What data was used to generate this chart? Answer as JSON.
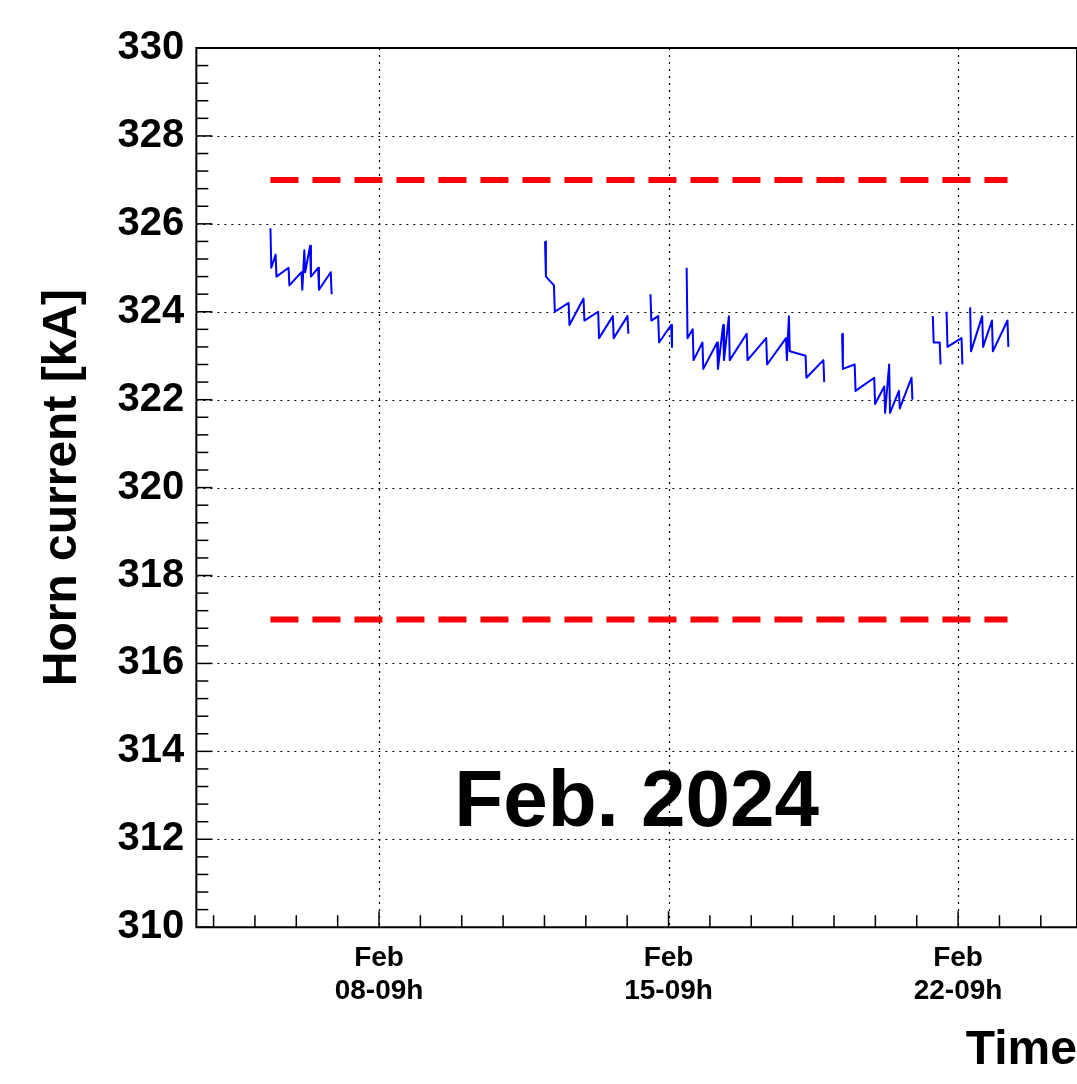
{
  "chart_data": {
    "type": "line",
    "xlabel": "Time",
    "ylabel": "Horn current [kA]",
    "annotations": [
      "Feb. 2024"
    ],
    "xlim": [
      "2024-02-03T23:00",
      "2024-02-25T06:00"
    ],
    "xticks": [
      {
        "value": "2024-02-04T09:00",
        "label": null
      },
      {
        "value": "2024-02-05T09:00",
        "label": null
      },
      {
        "value": "2024-02-06T09:00",
        "label": null
      },
      {
        "value": "2024-02-07T09:00",
        "label": null
      },
      {
        "value": "2024-02-08T09:00",
        "label": "Feb\n08-09h"
      },
      {
        "value": "2024-02-09T09:00",
        "label": null
      },
      {
        "value": "2024-02-10T09:00",
        "label": null
      },
      {
        "value": "2024-02-11T09:00",
        "label": null
      },
      {
        "value": "2024-02-12T09:00",
        "label": null
      },
      {
        "value": "2024-02-13T09:00",
        "label": null
      },
      {
        "value": "2024-02-14T09:00",
        "label": null
      },
      {
        "value": "2024-02-15T09:00",
        "label": "Feb\n15-09h"
      },
      {
        "value": "2024-02-16T09:00",
        "label": null
      },
      {
        "value": "2024-02-17T09:00",
        "label": null
      },
      {
        "value": "2024-02-18T09:00",
        "label": null
      },
      {
        "value": "2024-02-19T09:00",
        "label": null
      },
      {
        "value": "2024-02-20T09:00",
        "label": null
      },
      {
        "value": "2024-02-21T09:00",
        "label": null
      },
      {
        "value": "2024-02-22T09:00",
        "label": "Feb\n22-09h"
      },
      {
        "value": "2024-02-23T09:00",
        "label": null
      },
      {
        "value": "2024-02-24T09:00",
        "label": null
      }
    ],
    "ylim": [
      310,
      330
    ],
    "yticks": [
      310,
      {
        "value": 310.4,
        "label": null
      },
      {
        "value": 310.8,
        "label": null
      },
      {
        "value": 311.2,
        "label": null
      },
      {
        "value": 311.6,
        "label": null
      },
      312,
      {
        "value": 312.4,
        "label": null
      },
      {
        "value": 312.8,
        "label": null
      },
      {
        "value": 313.2,
        "label": null
      },
      {
        "value": 313.6,
        "label": null
      },
      314,
      {
        "value": 314.4,
        "label": null
      },
      {
        "value": 314.8,
        "label": null
      },
      {
        "value": 315.2,
        "label": null
      },
      {
        "value": 315.6,
        "label": null
      },
      316,
      {
        "value": 316.4,
        "label": null
      },
      {
        "value": 316.8,
        "label": null
      },
      {
        "value": 317.2,
        "label": null
      },
      {
        "value": 317.6,
        "label": null
      },
      318,
      {
        "value": 318.4,
        "label": null
      },
      {
        "value": 318.8,
        "label": null
      },
      {
        "value": 319.2,
        "label": null
      },
      {
        "value": 319.6,
        "label": null
      },
      320,
      {
        "value": 320.4,
        "label": null
      },
      {
        "value": 320.8,
        "label": null
      },
      {
        "value": 321.2,
        "label": null
      },
      {
        "value": 321.6,
        "label": null
      },
      322,
      {
        "value": 322.4,
        "label": null
      },
      {
        "value": 322.8,
        "label": null
      },
      {
        "value": 323.2,
        "label": null
      },
      {
        "value": 323.6,
        "label": null
      },
      324,
      {
        "value": 324.4,
        "label": null
      },
      {
        "value": 324.8,
        "label": null
      },
      {
        "value": 325.2,
        "label": null
      },
      {
        "value": 325.6,
        "label": null
      },
      326,
      {
        "value": 326.4,
        "label": null
      },
      {
        "value": 326.8,
        "label": null
      },
      {
        "value": 327.2,
        "label": null
      },
      {
        "value": 327.6,
        "label": null
      },
      328,
      {
        "value": 328.4,
        "label": null
      },
      {
        "value": 328.8,
        "label": null
      },
      {
        "value": 329.2,
        "label": null
      },
      {
        "value": 329.6,
        "label": null
      },
      330
    ],
    "grid": true,
    "legend": false,
    "marker": "none",
    "line_style": "solid",
    "series": [
      {
        "type": "line",
        "color": "#0000ff",
        "x": [
          "2024-02-05T18:00",
          "2024-02-05T18:30",
          "2024-02-05T21:00",
          "2024-02-05T21:30",
          "2024-02-06T04:30",
          "2024-02-06T05:00",
          "2024-02-06T12:00",
          "2024-02-06T12:30",
          "2024-02-06T13:40",
          "2024-02-06T14:10",
          "2024-02-06T17:00",
          "2024-02-06T17:30",
          "2024-02-06T21:40",
          "2024-02-06T22:10",
          "2024-02-07T05:00",
          "2024-02-07T05:30",
          "2024-02-09T12:00",
          "2024-02-12T09:20",
          "2024-02-12T09:50",
          "2024-02-12T14:30",
          "2024-02-12T15:00",
          "2024-02-12T23:00",
          "2024-02-12T23:30",
          "2024-02-13T07:40",
          "2024-02-13T08:10",
          "2024-02-13T16:10",
          "2024-02-13T16:40",
          "2024-02-14T00:40",
          "2024-02-14T01:10",
          "2024-02-14T09:10",
          "2024-02-14T09:40",
          "2024-02-14T16:00",
          "2024-02-14T22:30",
          "2024-02-14T23:00",
          "2024-02-15T03:00",
          "2024-02-15T03:30",
          "2024-02-15T10:30",
          "2024-02-15T11:00",
          "2024-02-15T15:00",
          "2024-02-15T19:30",
          "2024-02-15T20:00",
          "2024-02-15T23:00",
          "2024-02-15T23:30",
          "2024-02-16T04:40",
          "2024-02-16T05:10",
          "2024-02-16T13:10",
          "2024-02-16T13:40",
          "2024-02-16T16:40",
          "2024-02-16T17:10",
          "2024-02-16T20:00",
          "2024-02-16T20:30",
          "2024-02-17T06:20",
          "2024-02-17T06:50",
          "2024-02-17T17:40",
          "2024-02-17T18:10",
          "2024-02-18T05:10",
          "2024-02-18T05:40",
          "2024-02-18T06:50",
          "2024-02-18T07:20",
          "2024-02-18T16:30",
          "2024-02-18T17:00",
          "2024-02-19T02:50",
          "2024-02-19T03:20",
          "2024-02-19T08:00",
          "2024-02-19T13:40",
          "2024-02-19T14:10",
          "2024-02-19T21:00",
          "2024-02-19T21:30",
          "2024-02-20T08:20",
          "2024-02-20T08:50",
          "2024-02-20T14:10",
          "2024-02-20T14:40",
          "2024-02-20T17:00",
          "2024-02-20T17:30",
          "2024-02-20T22:40",
          "2024-02-20T23:10",
          "2024-02-21T06:00",
          "2024-02-21T06:30",
          "2024-02-21T12:00",
          "2024-02-21T18:20",
          "2024-02-21T18:50",
          "2024-02-21T22:20",
          "2024-02-21T22:50",
          "2024-02-22T00:00",
          "2024-02-22T02:20",
          "2024-02-22T02:50",
          "2024-02-22T11:00",
          "2024-02-22T11:30",
          "2024-02-22T13:00",
          "2024-02-22T16:00",
          "2024-02-22T16:30",
          "2024-02-22T23:00",
          "2024-02-22T23:30",
          "2024-02-23T04:40",
          "2024-02-23T05:10",
          "2024-02-23T13:40",
          "2024-02-23T14:10"
        ],
        "values": [
          325.9,
          325.0,
          325.3,
          324.8,
          325.0,
          324.6,
          324.9,
          324.5,
          325.4,
          324.9,
          325.5,
          324.8,
          325.0,
          324.5,
          324.9,
          324.4,
          null,
          325.6,
          324.8,
          324.6,
          324.0,
          324.2,
          323.7,
          324.3,
          323.8,
          324.0,
          323.4,
          323.9,
          323.4,
          323.9,
          323.5,
          null,
          324.4,
          323.8,
          323.9,
          323.3,
          323.7,
          323.2,
          null,
          325.0,
          323.4,
          323.6,
          322.9,
          323.3,
          322.7,
          323.3,
          322.7,
          323.7,
          322.9,
          323.9,
          322.9,
          323.5,
          322.9,
          323.4,
          322.8,
          323.4,
          322.9,
          323.9,
          323.1,
          323.0,
          322.5,
          322.9,
          322.4,
          null,
          323.5,
          322.7,
          322.8,
          322.2,
          322.5,
          321.9,
          322.3,
          321.7,
          322.8,
          321.7,
          322.2,
          321.8,
          322.5,
          322.0,
          null,
          323.9,
          323.3,
          323.3,
          322.8,
          null,
          324.0,
          323.2,
          323.4,
          322.8,
          null,
          324.1,
          323.1,
          323.9,
          323.2,
          323.8,
          323.1,
          323.8,
          323.2
        ]
      },
      {
        "type": "line",
        "color": "#ff0000",
        "line_style": "dashed",
        "x": [
          "2024-02-05T18:00",
          "2024-02-23T13:40"
        ],
        "values": [
          327,
          327
        ]
      },
      {
        "type": "line",
        "color": "#ff0000",
        "line_style": "dashed",
        "x": [
          "2024-02-05T18:00",
          "2024-02-23T13:40"
        ],
        "values": [
          317,
          317
        ]
      }
    ]
  }
}
